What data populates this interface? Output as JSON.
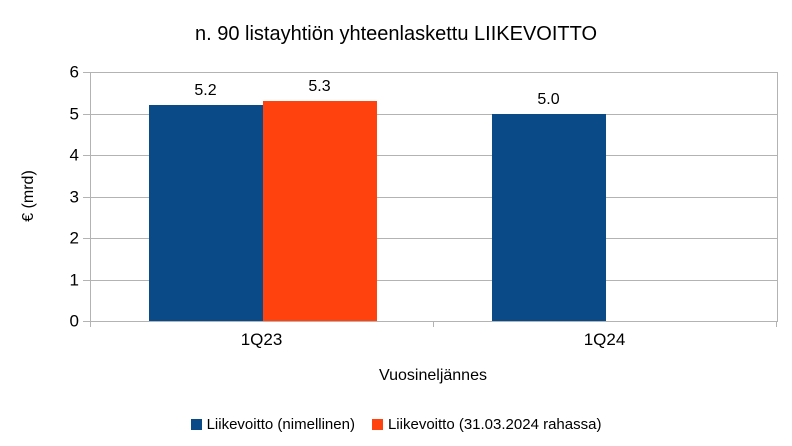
{
  "chart_data": {
    "type": "bar",
    "title": "n. 90 listayhtiön yhteenlaskettu LIIKEVOITTO",
    "xlabel": "Vuosineljännes",
    "ylabel": "€ (mrd)",
    "ylim": [
      0,
      6
    ],
    "y_ticks": [
      0,
      1,
      2,
      3,
      4,
      5,
      6
    ],
    "grid": true,
    "legend_position": "bottom",
    "categories": [
      "1Q23",
      "1Q24"
    ],
    "series": [
      {
        "name": "Liikevoitto (nimellinen)",
        "color": "#0a4b87",
        "values": [
          5.2,
          5.0
        ],
        "labels": [
          "5.2",
          "5.0"
        ]
      },
      {
        "name": "Liikevoitto (31.03.2024 rahassa)",
        "color": "#ff420e",
        "values": [
          5.3,
          null
        ],
        "labels": [
          "5.3",
          null
        ]
      }
    ],
    "colors": {
      "grid": "#b3b3b3",
      "axis": "#b3b3b3",
      "text": "#000000",
      "background": "#ffffff"
    }
  }
}
